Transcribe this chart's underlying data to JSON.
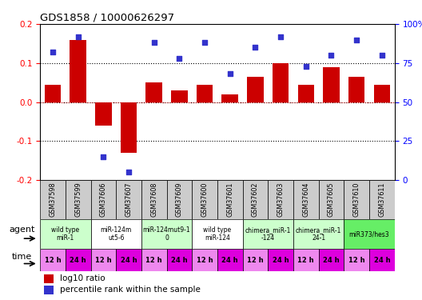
{
  "title": "GDS1858 / 10000626297",
  "samples": [
    "GSM37598",
    "GSM37599",
    "GSM37606",
    "GSM37607",
    "GSM37608",
    "GSM37609",
    "GSM37600",
    "GSM37601",
    "GSM37602",
    "GSM37603",
    "GSM37604",
    "GSM37605",
    "GSM37610",
    "GSM37611"
  ],
  "log10_ratio": [
    0.045,
    0.16,
    -0.06,
    -0.13,
    0.05,
    0.03,
    0.045,
    0.02,
    0.065,
    0.1,
    0.045,
    0.09,
    0.065,
    0.045
  ],
  "percentile": [
    82,
    92,
    15,
    5,
    88,
    78,
    88,
    68,
    85,
    92,
    73,
    80,
    90,
    80
  ],
  "ylim": [
    -0.2,
    0.2
  ],
  "yticks_left": [
    -0.2,
    -0.1,
    0.0,
    0.1,
    0.2
  ],
  "yticks_right": [
    0,
    25,
    50,
    75,
    100
  ],
  "yticks_right_labels": [
    "0",
    "25",
    "50",
    "75",
    "100%"
  ],
  "hlines": [
    -0.1,
    0.0,
    0.1
  ],
  "bar_color": "#cc0000",
  "dot_color": "#3333cc",
  "agent_groups": [
    {
      "label": "wild type\nmiR-1",
      "cols": [
        0,
        1
      ],
      "color": "#ccffcc"
    },
    {
      "label": "miR-124m\nut5-6",
      "cols": [
        2,
        3
      ],
      "color": "#ffffff"
    },
    {
      "label": "miR-124mut9-1\n0",
      "cols": [
        4,
        5
      ],
      "color": "#ccffcc"
    },
    {
      "label": "wild type\nmiR-124",
      "cols": [
        6,
        7
      ],
      "color": "#ffffff"
    },
    {
      "label": "chimera_miR-1\n-124",
      "cols": [
        8,
        9
      ],
      "color": "#ccffcc"
    },
    {
      "label": "chimera_miR-1\n24-1",
      "cols": [
        10,
        11
      ],
      "color": "#ccffcc"
    },
    {
      "label": "miR373/hes3",
      "cols": [
        12,
        13
      ],
      "color": "#66ee66"
    }
  ],
  "time_labels": [
    "12 h",
    "24 h",
    "12 h",
    "24 h",
    "12 h",
    "24 h",
    "12 h",
    "24 h",
    "12 h",
    "24 h",
    "12 h",
    "24 h",
    "12 h",
    "24 h"
  ],
  "time_colors_alt": [
    "#ee88ee",
    "#dd00dd",
    "#ee88ee",
    "#dd00dd",
    "#ee88ee",
    "#dd00dd",
    "#ee88ee",
    "#dd00dd",
    "#ee88ee",
    "#dd00dd",
    "#ee88ee",
    "#dd00dd",
    "#ee88ee",
    "#dd00dd"
  ],
  "sample_bg_color": "#cccccc",
  "legend_bar_label": "log10 ratio",
  "legend_dot_label": "percentile rank within the sample"
}
